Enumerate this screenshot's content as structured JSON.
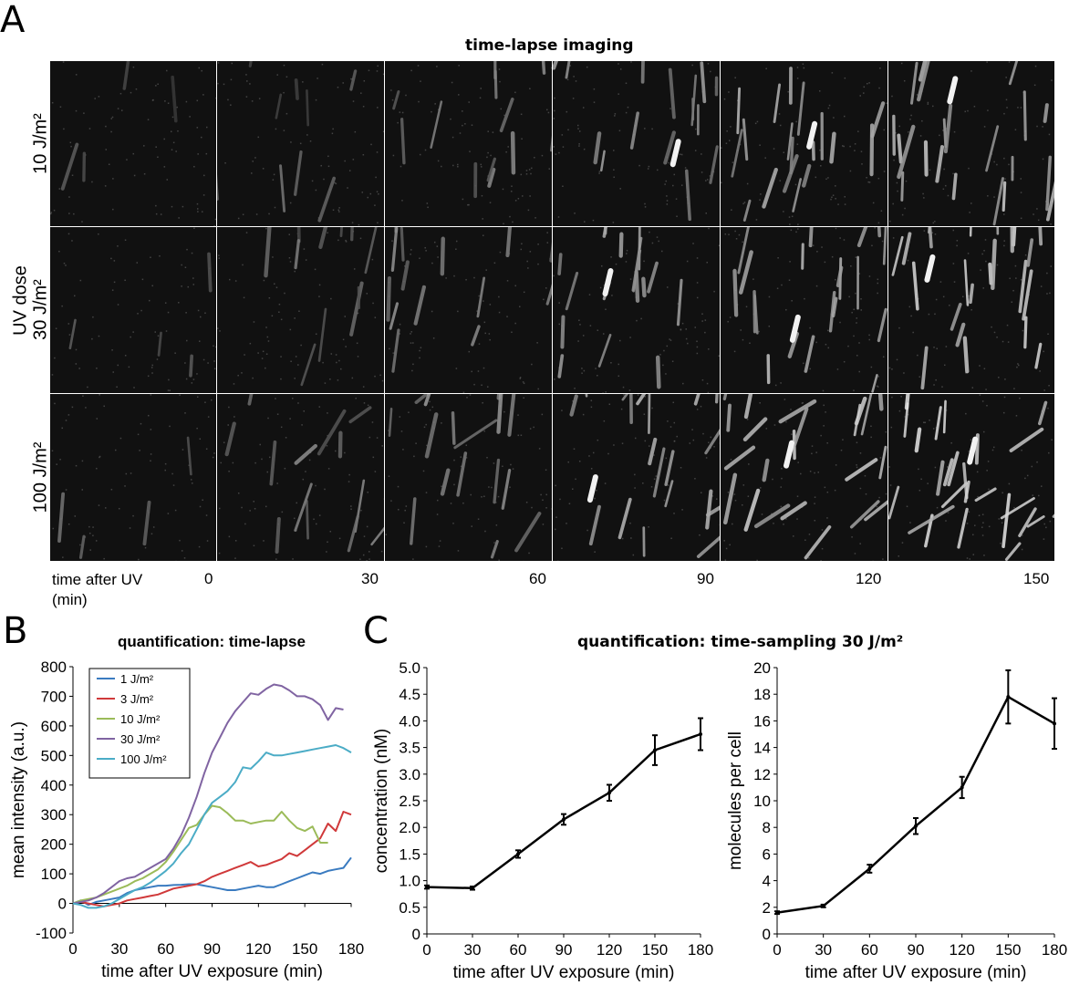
{
  "panelA": {
    "letter": "A",
    "title": "time-lapse imaging",
    "y_group_label": "UV dose",
    "rows": [
      "10 J/m²",
      "30 J/m²",
      "100 J/m²"
    ],
    "times": [
      "0",
      "30",
      "60",
      "90",
      "120",
      "150"
    ],
    "time_label_line1": "time after UV",
    "time_label_line2": "(min)"
  },
  "panelB": {
    "letter": "B"
  },
  "panelC": {
    "letter": "C",
    "title": "quantification: time-sampling 30 J/m²"
  },
  "chart_data": [
    {
      "type": "line",
      "title": "quantification: time-lapse",
      "xlabel": "time after UV exposure (min)",
      "ylabel": "mean intensity (a.u.)",
      "xlim": [
        0,
        180
      ],
      "ylim": [
        -100,
        800
      ],
      "xticks": [
        0,
        30,
        60,
        90,
        120,
        150,
        180
      ],
      "yticks": [
        -100,
        0,
        100,
        200,
        300,
        400,
        500,
        600,
        700,
        800
      ],
      "legend": "top-left",
      "series": [
        {
          "name": "1 J/m²",
          "color": "#3a7bc0",
          "x": [
            0,
            5,
            10,
            15,
            20,
            25,
            30,
            35,
            40,
            45,
            50,
            55,
            60,
            65,
            70,
            75,
            80,
            85,
            90,
            95,
            100,
            105,
            110,
            115,
            120,
            125,
            130,
            135,
            140,
            145,
            150,
            155,
            160,
            165,
            170,
            175,
            180
          ],
          "y": [
            0,
            10,
            -5,
            5,
            10,
            15,
            20,
            35,
            45,
            50,
            55,
            60,
            60,
            62,
            63,
            65,
            65,
            60,
            55,
            50,
            45,
            45,
            50,
            55,
            60,
            55,
            55,
            65,
            75,
            85,
            95,
            105,
            100,
            110,
            115,
            120,
            155
          ]
        },
        {
          "name": "3 J/m²",
          "color": "#d0393a",
          "x": [
            0,
            5,
            10,
            15,
            20,
            25,
            30,
            35,
            40,
            45,
            50,
            55,
            60,
            65,
            70,
            75,
            80,
            85,
            90,
            95,
            100,
            105,
            110,
            115,
            120,
            125,
            130,
            135,
            140,
            145,
            150,
            155,
            160,
            165,
            170,
            175,
            180
          ],
          "y": [
            0,
            5,
            0,
            -5,
            -10,
            -5,
            0,
            10,
            15,
            20,
            25,
            30,
            40,
            50,
            55,
            60,
            65,
            75,
            90,
            100,
            110,
            120,
            130,
            140,
            125,
            130,
            140,
            150,
            170,
            160,
            180,
            200,
            220,
            270,
            245,
            310,
            300
          ]
        },
        {
          "name": "10 J/m²",
          "color": "#9bbb59",
          "x": [
            0,
            5,
            10,
            15,
            20,
            25,
            30,
            35,
            40,
            45,
            50,
            55,
            60,
            65,
            70,
            75,
            80,
            85,
            90,
            95,
            100,
            105,
            110,
            115,
            120,
            125,
            130,
            135,
            140,
            145,
            150,
            155,
            160,
            165
          ],
          "y": [
            0,
            10,
            15,
            20,
            30,
            40,
            50,
            60,
            75,
            85,
            100,
            115,
            140,
            175,
            215,
            255,
            265,
            300,
            330,
            325,
            305,
            280,
            280,
            270,
            275,
            280,
            280,
            310,
            280,
            255,
            245,
            260,
            205,
            205
          ]
        },
        {
          "name": "30 J/m²",
          "color": "#8064a2",
          "x": [
            0,
            5,
            10,
            15,
            20,
            25,
            30,
            35,
            40,
            45,
            50,
            55,
            60,
            65,
            70,
            75,
            80,
            85,
            90,
            95,
            100,
            105,
            110,
            115,
            120,
            125,
            130,
            135,
            140,
            145,
            150,
            155,
            160,
            165,
            170,
            175
          ],
          "y": [
            0,
            5,
            10,
            20,
            35,
            55,
            75,
            85,
            90,
            105,
            120,
            135,
            150,
            185,
            230,
            290,
            360,
            440,
            510,
            560,
            610,
            650,
            680,
            710,
            705,
            725,
            740,
            735,
            720,
            700,
            700,
            690,
            670,
            620,
            660,
            655
          ]
        },
        {
          "name": "100 J/m²",
          "color": "#4bacc6",
          "x": [
            0,
            5,
            10,
            15,
            20,
            25,
            30,
            35,
            40,
            45,
            50,
            55,
            60,
            65,
            70,
            75,
            80,
            85,
            90,
            95,
            100,
            105,
            110,
            115,
            120,
            125,
            130,
            135,
            140,
            145,
            150,
            155,
            160,
            165,
            170,
            175,
            180
          ],
          "y": [
            0,
            -5,
            -15,
            -15,
            -10,
            0,
            15,
            30,
            45,
            55,
            70,
            90,
            110,
            135,
            170,
            200,
            250,
            300,
            340,
            360,
            380,
            410,
            460,
            455,
            480,
            510,
            500,
            500,
            505,
            510,
            515,
            520,
            525,
            530,
            535,
            525,
            510
          ]
        }
      ]
    },
    {
      "type": "line",
      "title": "",
      "xlabel": "time after UV exposure (min)",
      "ylabel": "concentration (nM)",
      "xlim": [
        0,
        180
      ],
      "ylim": [
        0,
        5
      ],
      "xticks": [
        0,
        30,
        60,
        90,
        120,
        150,
        180
      ],
      "yticks": [
        0,
        0.5,
        1.0,
        1.5,
        2.0,
        2.5,
        3.0,
        3.5,
        4.0,
        4.5,
        5.0
      ],
      "ytick_labels": [
        "0",
        "0.5",
        "1.0",
        "1.5",
        "2.0",
        "2.5",
        "3.0",
        "3.5",
        "4.0",
        "4.5",
        "5.0"
      ],
      "series": [
        {
          "x": [
            0,
            30,
            60,
            90,
            120,
            150,
            180
          ],
          "y": [
            0.88,
            0.86,
            1.5,
            2.15,
            2.65,
            3.45,
            3.75
          ],
          "error": [
            0.03,
            0.03,
            0.07,
            0.1,
            0.15,
            0.28,
            0.3
          ],
          "color": "#000000"
        }
      ]
    },
    {
      "type": "line",
      "title": "",
      "xlabel": "time after UV exposure (min)",
      "ylabel": "molecules per cell",
      "xlim": [
        0,
        180
      ],
      "ylim": [
        0,
        20
      ],
      "xticks": [
        0,
        30,
        60,
        90,
        120,
        150,
        180
      ],
      "yticks": [
        0,
        2,
        4,
        6,
        8,
        10,
        12,
        14,
        16,
        18,
        20
      ],
      "series": [
        {
          "x": [
            0,
            30,
            60,
            90,
            120,
            150,
            180
          ],
          "y": [
            1.6,
            2.1,
            4.9,
            8.1,
            11.0,
            17.8,
            15.8
          ],
          "error": [
            0.1,
            0.1,
            0.3,
            0.6,
            0.8,
            2.0,
            1.9
          ],
          "color": "#000000"
        }
      ]
    }
  ]
}
